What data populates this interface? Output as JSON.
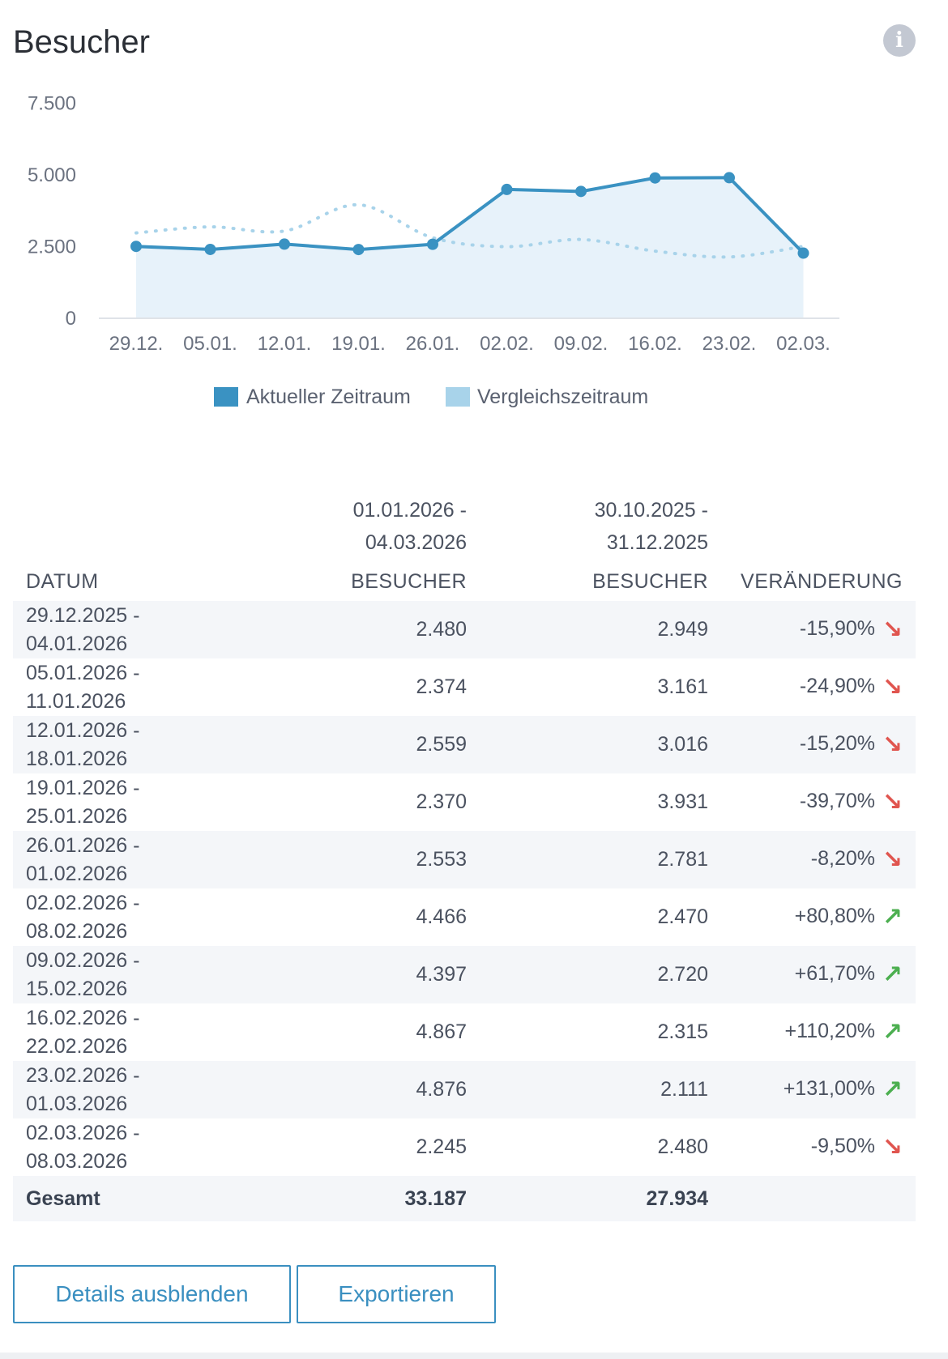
{
  "header": {
    "title": "Besucher",
    "info_icon": "info-icon"
  },
  "colors": {
    "current": "#3a92c2",
    "comparison": "#a8d3ea",
    "area": "#e3f0f9",
    "down": "#e0554f",
    "up": "#4caf50"
  },
  "chart_data": {
    "type": "line",
    "title": "Besucher",
    "categories": [
      "29.12.",
      "05.01.",
      "12.01.",
      "19.01.",
      "26.01.",
      "02.02.",
      "09.02.",
      "16.02.",
      "23.02.",
      "02.03."
    ],
    "y_ticks": [
      "0",
      "2.500",
      "5.000",
      "7.500"
    ],
    "ylim": [
      0,
      7500
    ],
    "series": [
      {
        "name": "Aktueller Zeitraum",
        "values": [
          2480,
          2374,
          2559,
          2370,
          2553,
          4466,
          4397,
          4867,
          4876,
          2245
        ]
      },
      {
        "name": "Vergleichszeitraum",
        "values": [
          2949,
          3161,
          3016,
          3931,
          2781,
          2470,
          2720,
          2315,
          2111,
          2480
        ]
      }
    ],
    "legend": [
      "Aktueller Zeitraum",
      "Vergleichszeitraum"
    ],
    "legend_position": "bottom",
    "xlabel": "",
    "ylabel": ""
  },
  "table": {
    "period_current": [
      "01.01.2026 -",
      "04.03.2026"
    ],
    "period_comparison": [
      "30.10.2025 -",
      "31.12.2025"
    ],
    "headers": {
      "date": "DATUM",
      "visitors_current": "BESUCHER",
      "visitors_comparison": "BESUCHER",
      "change": "VERÄNDERUNG"
    },
    "rows": [
      {
        "date1": "29.12.2025 -",
        "date2": "04.01.2026",
        "current": "2.480",
        "comparison": "2.949",
        "change": "-15,90%",
        "dir": "down"
      },
      {
        "date1": "05.01.2026 -",
        "date2": "11.01.2026",
        "current": "2.374",
        "comparison": "3.161",
        "change": "-24,90%",
        "dir": "down"
      },
      {
        "date1": "12.01.2026 -",
        "date2": "18.01.2026",
        "current": "2.559",
        "comparison": "3.016",
        "change": "-15,20%",
        "dir": "down"
      },
      {
        "date1": "19.01.2026 -",
        "date2": "25.01.2026",
        "current": "2.370",
        "comparison": "3.931",
        "change": "-39,70%",
        "dir": "down"
      },
      {
        "date1": "26.01.2026 -",
        "date2": "01.02.2026",
        "current": "2.553",
        "comparison": "2.781",
        "change": "-8,20%",
        "dir": "down"
      },
      {
        "date1": "02.02.2026 -",
        "date2": "08.02.2026",
        "current": "4.466",
        "comparison": "2.470",
        "change": "+80,80%",
        "dir": "up"
      },
      {
        "date1": "09.02.2026 -",
        "date2": "15.02.2026",
        "current": "4.397",
        "comparison": "2.720",
        "change": "+61,70%",
        "dir": "up"
      },
      {
        "date1": "16.02.2026 -",
        "date2": "22.02.2026",
        "current": "4.867",
        "comparison": "2.315",
        "change": "+110,20%",
        "dir": "up"
      },
      {
        "date1": "23.02.2026 -",
        "date2": "01.03.2026",
        "current": "4.876",
        "comparison": "2.111",
        "change": "+131,00%",
        "dir": "up"
      },
      {
        "date1": "02.03.2026 -",
        "date2": "08.03.2026",
        "current": "2.245",
        "comparison": "2.480",
        "change": "-9,50%",
        "dir": "down"
      }
    ],
    "total": {
      "label": "Gesamt",
      "current": "33.187",
      "comparison": "27.934"
    }
  },
  "buttons": {
    "details": "Details ausblenden",
    "export": "Exportieren"
  }
}
